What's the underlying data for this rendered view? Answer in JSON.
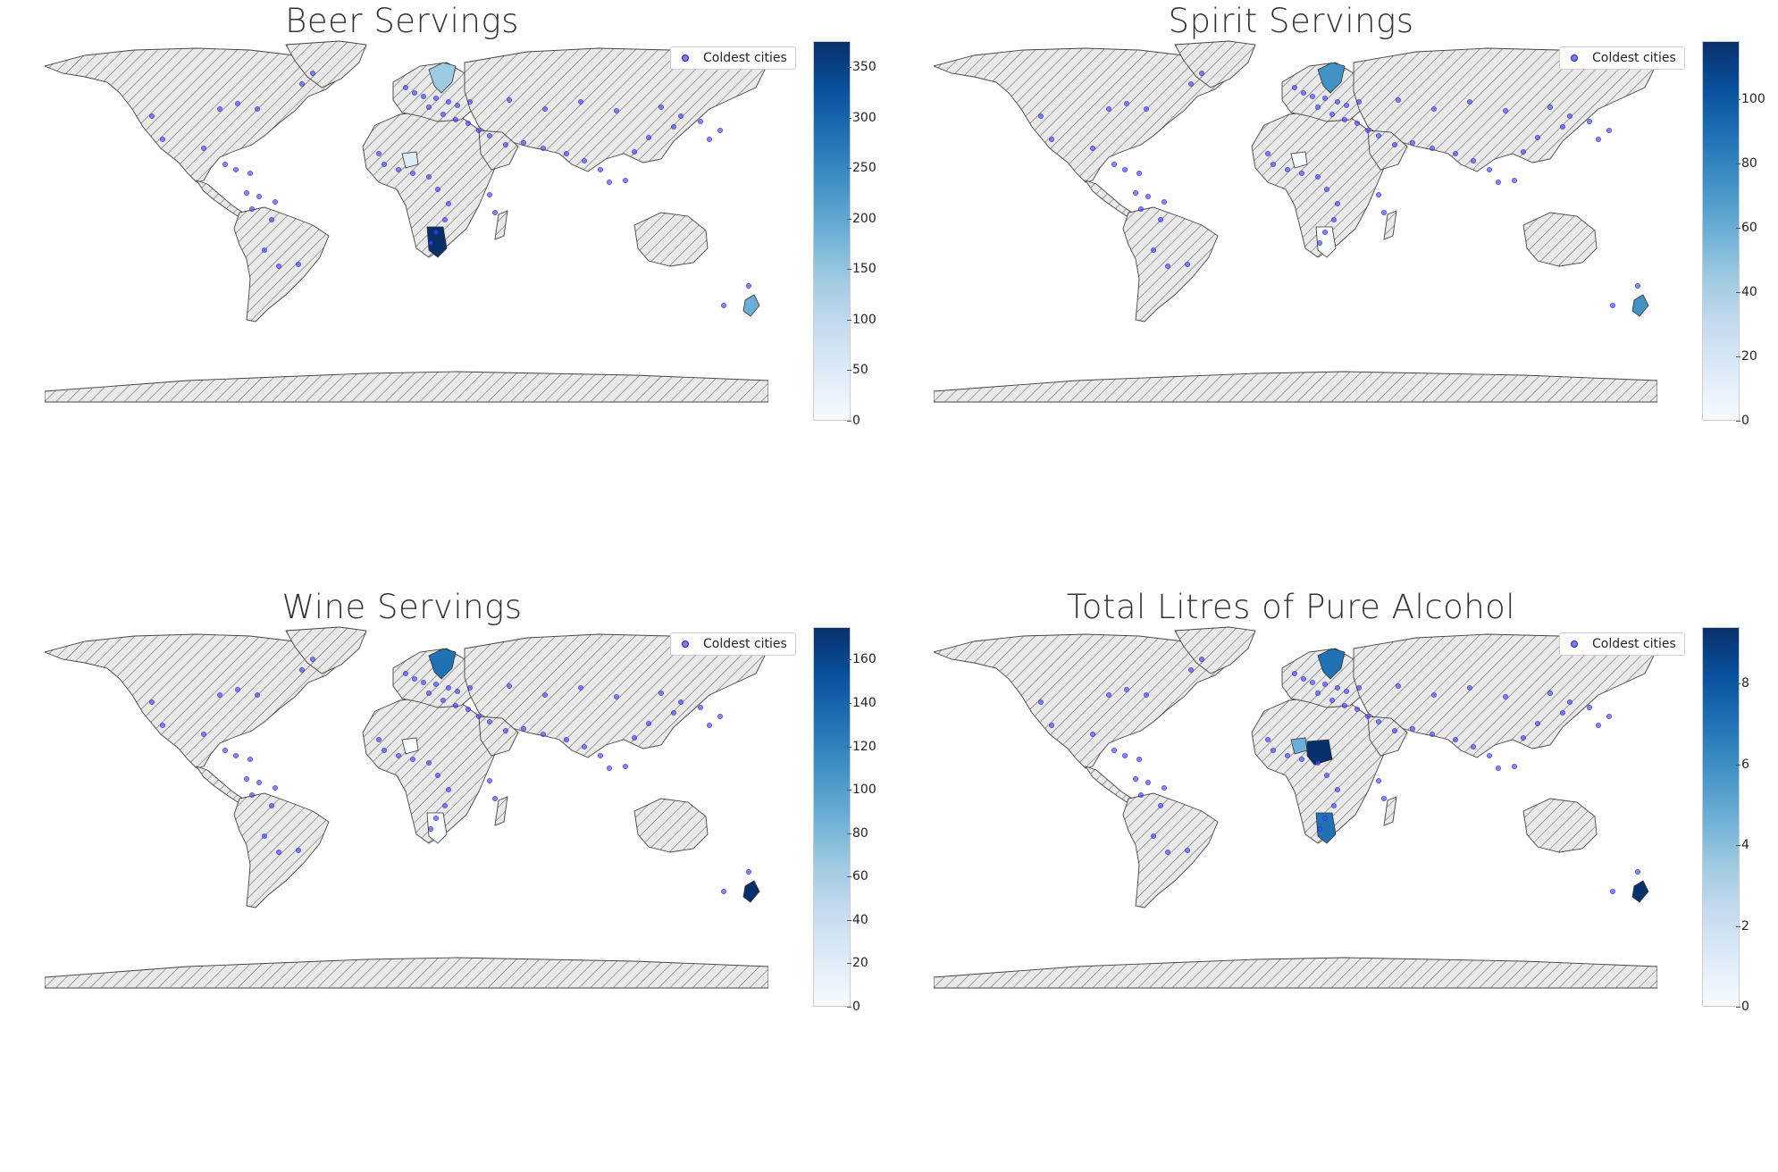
{
  "colormap": [
    "#f7fbff",
    "#deebf7",
    "#c6dbef",
    "#9ecae1",
    "#6baed6",
    "#4292c6",
    "#2171b5",
    "#08519c",
    "#08306b"
  ],
  "land_fill": "#e9e9e9",
  "hatch_color": "#555555",
  "city_color": "#3333dd",
  "chart_data": [
    {
      "type": "map",
      "title": "Beer Servings",
      "legend": {
        "label": "Coldest cities",
        "placement": "top-right"
      },
      "colorbar": {
        "min": 0,
        "max": 376,
        "ticks": [
          "0",
          "50",
          "100",
          "150",
          "200",
          "250",
          "300",
          "350"
        ]
      },
      "highlighted_regions": [
        {
          "region": "Namibia",
          "value": 376
        },
        {
          "region": "Scandinavia",
          "value": 160
        },
        {
          "region": "New Zealand",
          "value": 200
        },
        {
          "region": "Burkina Faso",
          "value": 40
        }
      ]
    },
    {
      "type": "map",
      "title": "Spirit Servings",
      "legend": {
        "label": "Coldest cities",
        "placement": "top-right"
      },
      "colorbar": {
        "min": 0,
        "max": 118,
        "ticks": [
          "0",
          "20",
          "40",
          "60",
          "80",
          "100"
        ]
      },
      "highlighted_regions": [
        {
          "region": "Scandinavia",
          "value": 70
        },
        {
          "region": "New Zealand",
          "value": 79
        },
        {
          "region": "Namibia",
          "value": 5
        },
        {
          "region": "Burkina Faso",
          "value": 7
        }
      ]
    },
    {
      "type": "map",
      "title": "Wine Servings",
      "legend": {
        "label": "Coldest cities",
        "placement": "top-right"
      },
      "colorbar": {
        "min": 0,
        "max": 175,
        "ticks": [
          "0",
          "20",
          "40",
          "60",
          "80",
          "100",
          "120",
          "140",
          "160"
        ]
      },
      "highlighted_regions": [
        {
          "region": "New Zealand",
          "value": 175
        },
        {
          "region": "Scandinavia",
          "value": 130
        },
        {
          "region": "Burkina Faso",
          "value": 7
        },
        {
          "region": "Namibia",
          "value": 1
        }
      ]
    },
    {
      "type": "map",
      "title": "Total Litres of Pure Alcohol",
      "legend": {
        "label": "Coldest cities",
        "placement": "top-right"
      },
      "colorbar": {
        "min": 0,
        "max": 9.4,
        "ticks": [
          "0",
          "2",
          "4",
          "6",
          "8"
        ]
      },
      "highlighted_regions": [
        {
          "region": "Nigeria",
          "value": 9.1
        },
        {
          "region": "New Zealand",
          "value": 9.3
        },
        {
          "region": "Namibia",
          "value": 6.8
        },
        {
          "region": "Scandinavia",
          "value": 7.5
        },
        {
          "region": "Burkina Faso",
          "value": 4.3
        }
      ]
    }
  ]
}
